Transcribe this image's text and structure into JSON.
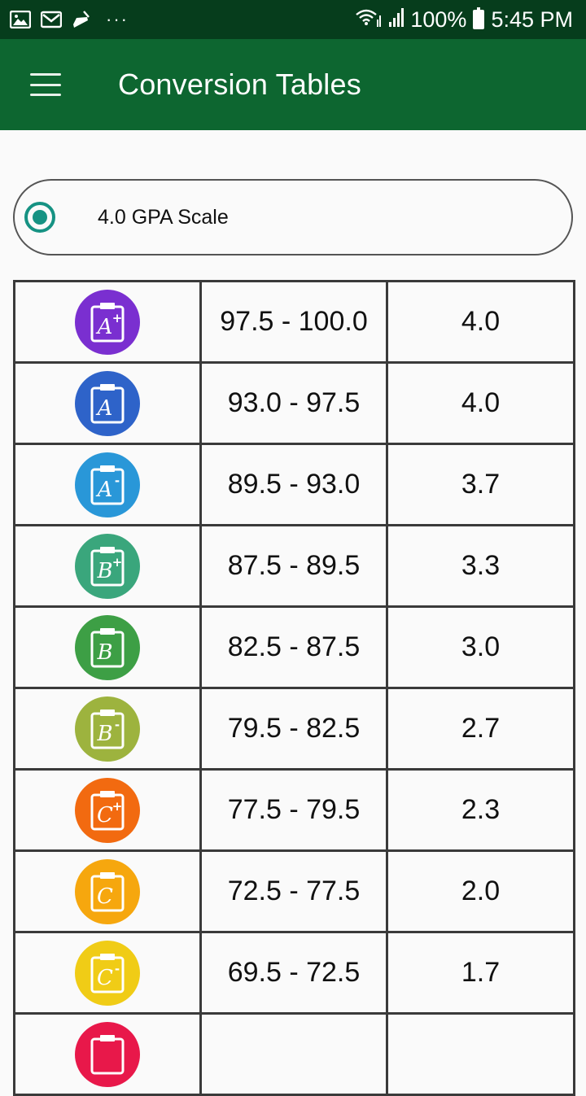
{
  "status_bar": {
    "left_icons": [
      "image-icon",
      "mail-icon",
      "cleaner-icon",
      "more-dots-icon"
    ],
    "dots": "···",
    "battery_percent": "100%",
    "time": "5:45 PM"
  },
  "app_bar": {
    "title": "Conversion Tables"
  },
  "scale_selector": {
    "label": "4.0 GPA Scale",
    "selected": true,
    "accent_color": "#169283"
  },
  "table": {
    "rows": [
      {
        "grade": "A",
        "modifier": "+",
        "color": "#7a2fd0",
        "range": "97.5 - 100.0",
        "gpa": "4.0"
      },
      {
        "grade": "A",
        "modifier": "",
        "color": "#2e63c9",
        "range": "93.0 - 97.5",
        "gpa": "4.0"
      },
      {
        "grade": "A",
        "modifier": "-",
        "color": "#2997d8",
        "range": "89.5 - 93.0",
        "gpa": "3.7"
      },
      {
        "grade": "B",
        "modifier": "+",
        "color": "#3aa67c",
        "range": "87.5 - 89.5",
        "gpa": "3.3"
      },
      {
        "grade": "B",
        "modifier": "",
        "color": "#3d9f45",
        "range": "82.5 - 87.5",
        "gpa": "3.0"
      },
      {
        "grade": "B",
        "modifier": "-",
        "color": "#9db33e",
        "range": "79.5 - 82.5",
        "gpa": "2.7"
      },
      {
        "grade": "C",
        "modifier": "+",
        "color": "#f26a10",
        "range": "77.5 - 79.5",
        "gpa": "2.3"
      },
      {
        "grade": "C",
        "modifier": "",
        "color": "#f6a70e",
        "range": "72.5 - 77.5",
        "gpa": "2.0"
      },
      {
        "grade": "C",
        "modifier": "-",
        "color": "#f0cc16",
        "range": "69.5 - 72.5",
        "gpa": "1.7"
      },
      {
        "grade": "",
        "modifier": "",
        "color": "#e8184a",
        "range": "",
        "gpa": ""
      }
    ]
  },
  "colors": {
    "status_bar_bg": "#063d1c",
    "app_bar_bg": "#0d6630",
    "page_bg": "#fafafa"
  }
}
